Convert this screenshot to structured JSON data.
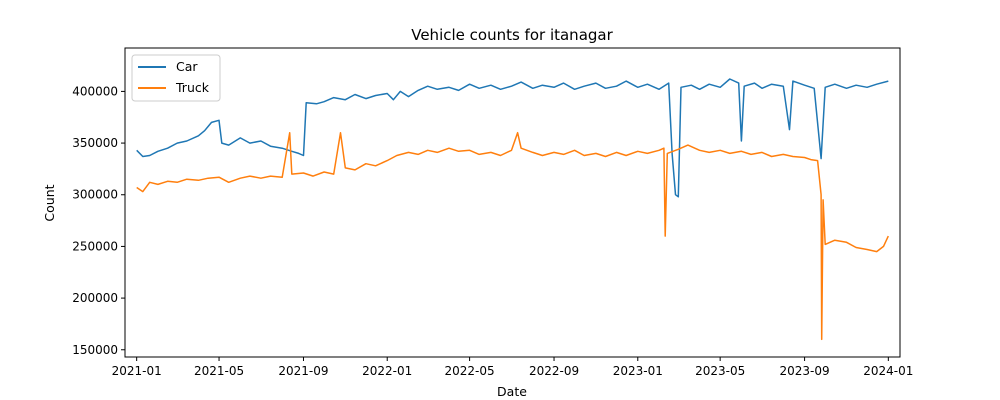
{
  "chart_data": {
    "type": "line",
    "title": "Vehicle counts for itanagar",
    "xlabel": "Date",
    "ylabel": "Count",
    "xlim": [
      "2020-12-15",
      "2024-01-18"
    ],
    "ylim": [
      143000,
      442000
    ],
    "x_ticks": [
      "2021-01",
      "2021-05",
      "2021-09",
      "2022-01",
      "2022-05",
      "2022-09",
      "2023-01",
      "2023-05",
      "2023-09",
      "2024-01"
    ],
    "y_ticks": [
      150000,
      200000,
      250000,
      300000,
      350000,
      400000
    ],
    "legend_position": "top-left",
    "grid": false,
    "series": [
      {
        "name": "Car",
        "color": "#1f77b4",
        "points": [
          [
            "2021-01-01",
            343000
          ],
          [
            "2021-01-10",
            337000
          ],
          [
            "2021-01-20",
            338000
          ],
          [
            "2021-02-01",
            342000
          ],
          [
            "2021-02-15",
            345000
          ],
          [
            "2021-03-01",
            350000
          ],
          [
            "2021-03-15",
            352000
          ],
          [
            "2021-04-01",
            357000
          ],
          [
            "2021-04-10",
            362000
          ],
          [
            "2021-04-20",
            370000
          ],
          [
            "2021-05-01",
            372000
          ],
          [
            "2021-05-05",
            350000
          ],
          [
            "2021-05-15",
            348000
          ],
          [
            "2021-06-01",
            355000
          ],
          [
            "2021-06-15",
            350000
          ],
          [
            "2021-07-01",
            352000
          ],
          [
            "2021-07-15",
            347000
          ],
          [
            "2021-08-01",
            345000
          ],
          [
            "2021-08-15",
            342000
          ],
          [
            "2021-08-25",
            340000
          ],
          [
            "2021-09-01",
            338000
          ],
          [
            "2021-09-05",
            389000
          ],
          [
            "2021-09-20",
            388000
          ],
          [
            "2021-10-01",
            390000
          ],
          [
            "2021-10-15",
            394000
          ],
          [
            "2021-11-01",
            392000
          ],
          [
            "2021-11-15",
            397000
          ],
          [
            "2021-12-01",
            393000
          ],
          [
            "2021-12-15",
            396000
          ],
          [
            "2022-01-01",
            398000
          ],
          [
            "2022-01-10",
            392000
          ],
          [
            "2022-01-20",
            400000
          ],
          [
            "2022-02-01",
            395000
          ],
          [
            "2022-02-15",
            401000
          ],
          [
            "2022-03-01",
            405000
          ],
          [
            "2022-03-15",
            402000
          ],
          [
            "2022-04-01",
            404000
          ],
          [
            "2022-04-15",
            401000
          ],
          [
            "2022-05-01",
            407000
          ],
          [
            "2022-05-15",
            403000
          ],
          [
            "2022-06-01",
            406000
          ],
          [
            "2022-06-15",
            402000
          ],
          [
            "2022-07-01",
            405000
          ],
          [
            "2022-07-15",
            409000
          ],
          [
            "2022-08-01",
            403000
          ],
          [
            "2022-08-15",
            406000
          ],
          [
            "2022-09-01",
            404000
          ],
          [
            "2022-09-15",
            408000
          ],
          [
            "2022-10-01",
            402000
          ],
          [
            "2022-10-15",
            405000
          ],
          [
            "2022-11-01",
            408000
          ],
          [
            "2022-11-15",
            403000
          ],
          [
            "2022-12-01",
            405000
          ],
          [
            "2022-12-15",
            410000
          ],
          [
            "2023-01-01",
            404000
          ],
          [
            "2023-01-15",
            407000
          ],
          [
            "2023-02-01",
            402000
          ],
          [
            "2023-02-15",
            408000
          ],
          [
            "2023-02-20",
            340000
          ],
          [
            "2023-02-25",
            300000
          ],
          [
            "2023-03-01",
            298000
          ],
          [
            "2023-03-05",
            404000
          ],
          [
            "2023-03-20",
            406000
          ],
          [
            "2023-04-01",
            402000
          ],
          [
            "2023-04-15",
            407000
          ],
          [
            "2023-05-01",
            404000
          ],
          [
            "2023-05-15",
            412000
          ],
          [
            "2023-05-28",
            408000
          ],
          [
            "2023-06-01",
            352000
          ],
          [
            "2023-06-05",
            405000
          ],
          [
            "2023-06-20",
            408000
          ],
          [
            "2023-07-01",
            403000
          ],
          [
            "2023-07-15",
            407000
          ],
          [
            "2023-08-01",
            405000
          ],
          [
            "2023-08-10",
            363000
          ],
          [
            "2023-08-15",
            410000
          ],
          [
            "2023-09-01",
            406000
          ],
          [
            "2023-09-15",
            403000
          ],
          [
            "2023-09-25",
            335000
          ],
          [
            "2023-10-01",
            404000
          ],
          [
            "2023-10-15",
            407000
          ],
          [
            "2023-11-01",
            403000
          ],
          [
            "2023-11-15",
            406000
          ],
          [
            "2023-12-01",
            404000
          ],
          [
            "2023-12-15",
            407000
          ],
          [
            "2024-01-01",
            410000
          ]
        ]
      },
      {
        "name": "Truck",
        "color": "#ff7f0e",
        "points": [
          [
            "2021-01-01",
            307000
          ],
          [
            "2021-01-10",
            303000
          ],
          [
            "2021-01-20",
            312000
          ],
          [
            "2021-02-01",
            310000
          ],
          [
            "2021-02-15",
            313000
          ],
          [
            "2021-03-01",
            312000
          ],
          [
            "2021-03-15",
            315000
          ],
          [
            "2021-04-01",
            314000
          ],
          [
            "2021-04-15",
            316000
          ],
          [
            "2021-05-01",
            317000
          ],
          [
            "2021-05-15",
            312000
          ],
          [
            "2021-06-01",
            316000
          ],
          [
            "2021-06-15",
            318000
          ],
          [
            "2021-07-01",
            316000
          ],
          [
            "2021-07-15",
            318000
          ],
          [
            "2021-08-01",
            317000
          ],
          [
            "2021-08-12",
            360000
          ],
          [
            "2021-08-15",
            320000
          ],
          [
            "2021-09-01",
            321000
          ],
          [
            "2021-09-15",
            318000
          ],
          [
            "2021-10-01",
            322000
          ],
          [
            "2021-10-15",
            320000
          ],
          [
            "2021-10-25",
            360000
          ],
          [
            "2021-11-01",
            326000
          ],
          [
            "2021-11-15",
            324000
          ],
          [
            "2021-12-01",
            330000
          ],
          [
            "2021-12-15",
            328000
          ],
          [
            "2022-01-01",
            333000
          ],
          [
            "2022-01-15",
            338000
          ],
          [
            "2022-02-01",
            341000
          ],
          [
            "2022-02-15",
            339000
          ],
          [
            "2022-03-01",
            343000
          ],
          [
            "2022-03-15",
            341000
          ],
          [
            "2022-04-01",
            345000
          ],
          [
            "2022-04-15",
            342000
          ],
          [
            "2022-05-01",
            343000
          ],
          [
            "2022-05-15",
            339000
          ],
          [
            "2022-06-01",
            341000
          ],
          [
            "2022-06-15",
            338000
          ],
          [
            "2022-07-01",
            343000
          ],
          [
            "2022-07-10",
            360000
          ],
          [
            "2022-07-15",
            345000
          ],
          [
            "2022-08-01",
            341000
          ],
          [
            "2022-08-15",
            338000
          ],
          [
            "2022-09-01",
            341000
          ],
          [
            "2022-09-15",
            339000
          ],
          [
            "2022-10-01",
            343000
          ],
          [
            "2022-10-15",
            338000
          ],
          [
            "2022-11-01",
            340000
          ],
          [
            "2022-11-15",
            337000
          ],
          [
            "2022-12-01",
            341000
          ],
          [
            "2022-12-15",
            338000
          ],
          [
            "2023-01-01",
            342000
          ],
          [
            "2023-01-15",
            340000
          ],
          [
            "2023-02-01",
            343000
          ],
          [
            "2023-02-08",
            345000
          ],
          [
            "2023-02-10",
            260000
          ],
          [
            "2023-02-13",
            340000
          ],
          [
            "2023-03-01",
            344000
          ],
          [
            "2023-03-15",
            348000
          ],
          [
            "2023-04-01",
            343000
          ],
          [
            "2023-04-15",
            341000
          ],
          [
            "2023-05-01",
            343000
          ],
          [
            "2023-05-15",
            340000
          ],
          [
            "2023-06-01",
            342000
          ],
          [
            "2023-06-15",
            339000
          ],
          [
            "2023-07-01",
            341000
          ],
          [
            "2023-07-15",
            337000
          ],
          [
            "2023-08-01",
            339000
          ],
          [
            "2023-08-15",
            337000
          ],
          [
            "2023-09-01",
            336000
          ],
          [
            "2023-09-10",
            334000
          ],
          [
            "2023-09-20",
            333000
          ],
          [
            "2023-09-25",
            300000
          ],
          [
            "2023-09-26",
            160000
          ],
          [
            "2023-09-28",
            295000
          ],
          [
            "2023-10-01",
            252000
          ],
          [
            "2023-10-15",
            256000
          ],
          [
            "2023-11-01",
            254000
          ],
          [
            "2023-11-15",
            249000
          ],
          [
            "2023-12-01",
            247000
          ],
          [
            "2023-12-15",
            245000
          ],
          [
            "2023-12-25",
            250000
          ],
          [
            "2024-01-01",
            260000
          ]
        ]
      }
    ]
  }
}
